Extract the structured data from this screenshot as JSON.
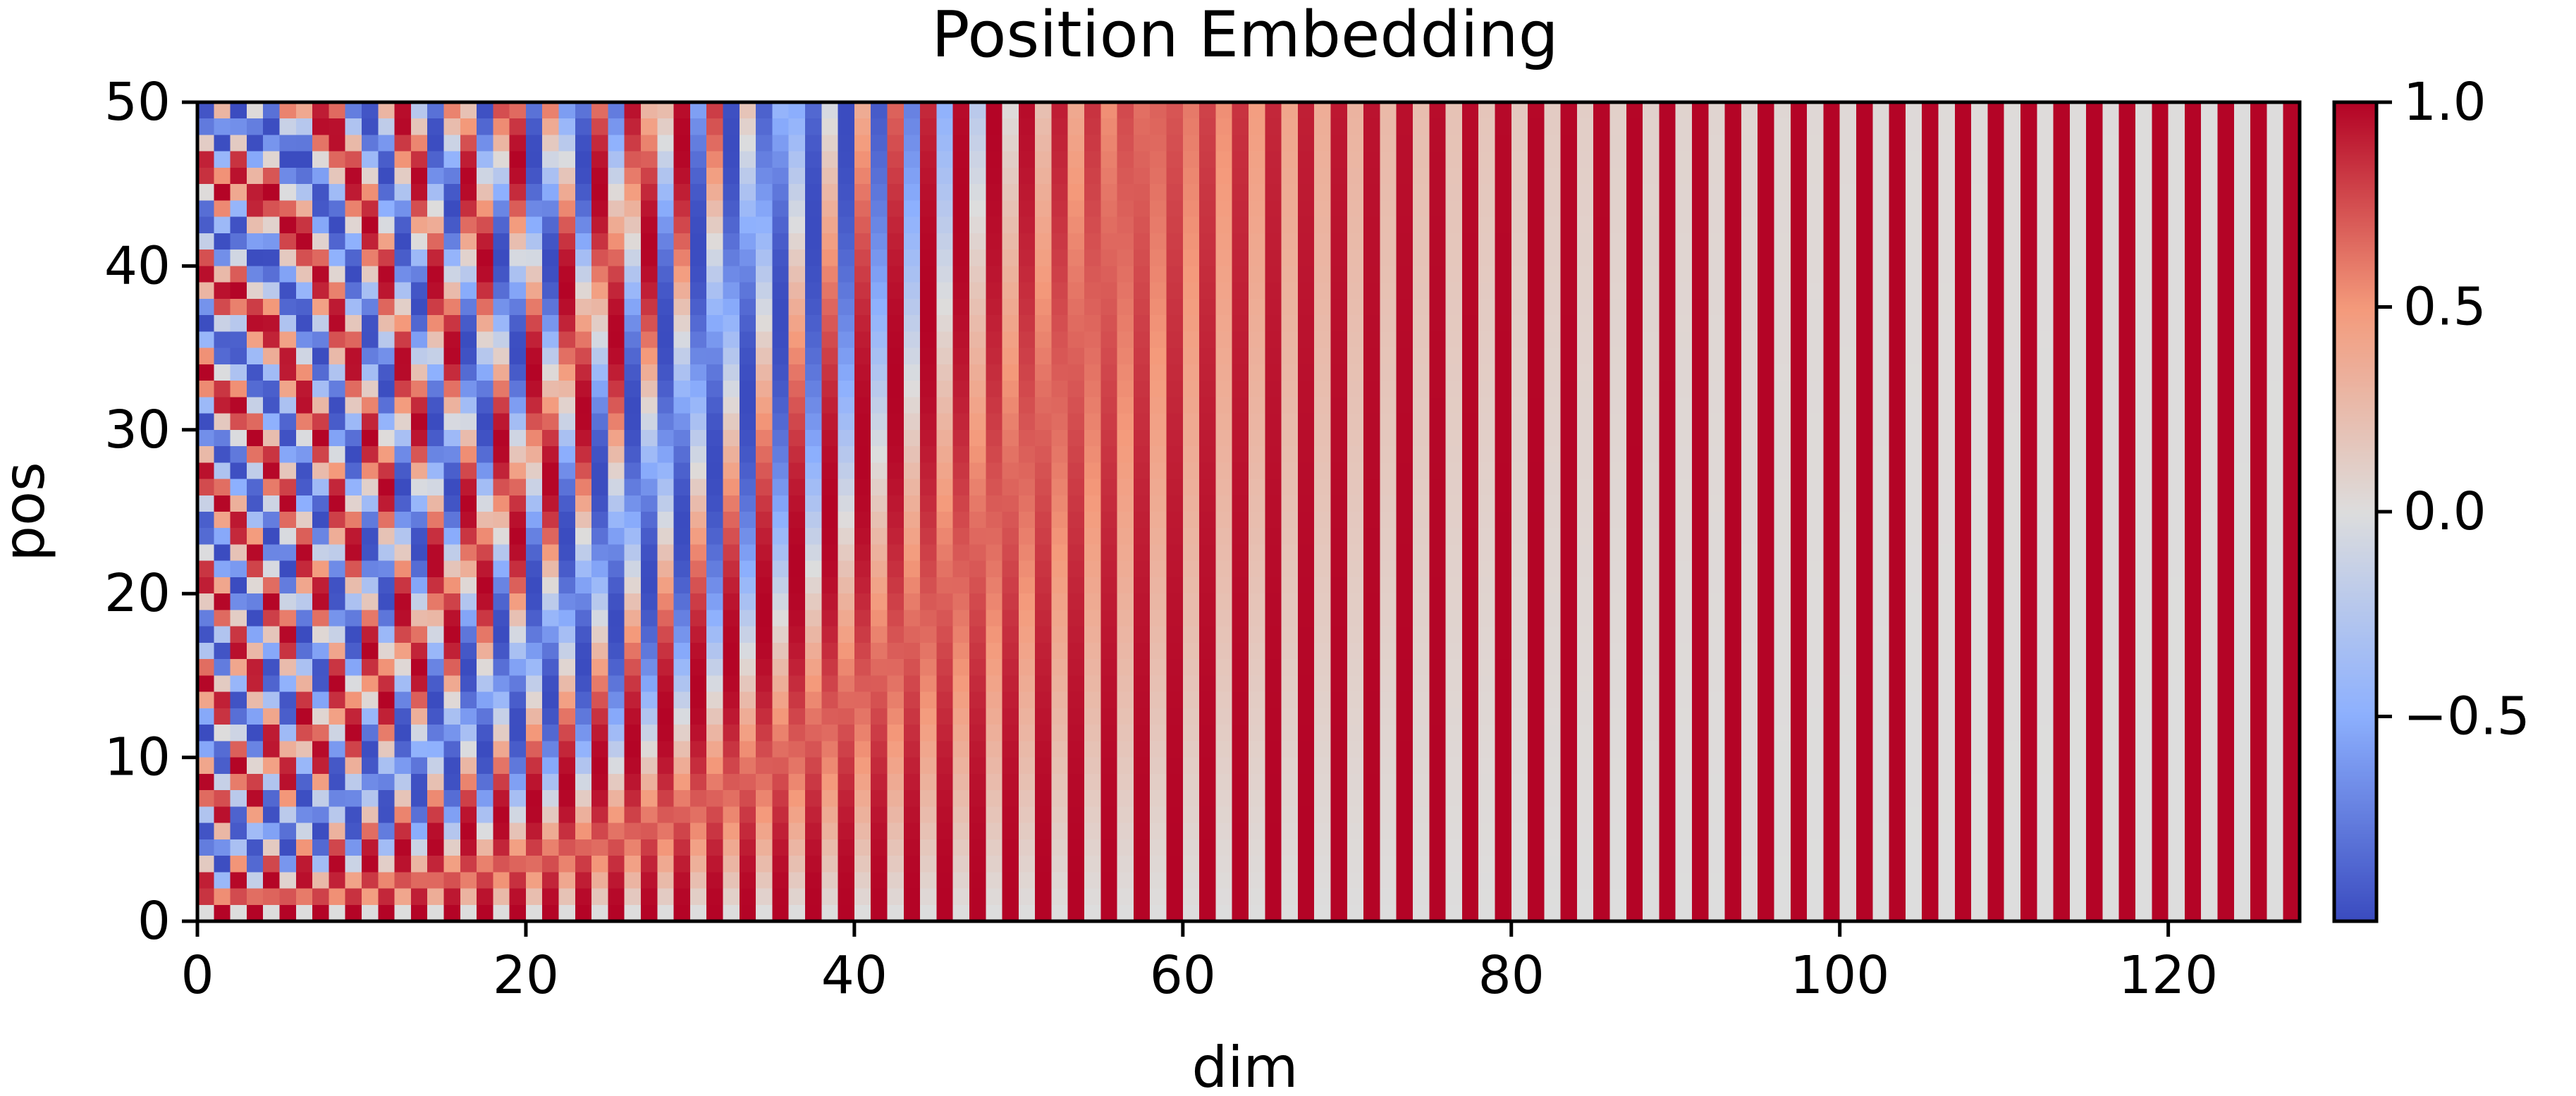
{
  "chart_data": {
    "type": "heatmap",
    "title": "Position Embedding",
    "xlabel": "dim",
    "ylabel": "pos",
    "xlim": [
      0,
      128
    ],
    "ylim": [
      0,
      50
    ],
    "dims": 128,
    "positions": 50,
    "formula": "sinusoidal",
    "encoding": "even dims: sin(pos / 10000^(dim/128)), odd dims: cos(pos / 10000^((dim-1)/128))",
    "x_ticks": [
      "0",
      "20",
      "40",
      "60",
      "80",
      "100",
      "120"
    ],
    "y_ticks": [
      "0",
      "10",
      "20",
      "30",
      "40",
      "50"
    ],
    "colormap": "coolwarm",
    "colorbar": {
      "vmin": -1.0,
      "vmax": 1.0,
      "ticks": [
        "1.0",
        "0.5",
        "0.0",
        "−0.5"
      ]
    },
    "colors": {
      "low": "#3b4cc0",
      "mid": "#dddddd",
      "high": "#b40426"
    }
  }
}
